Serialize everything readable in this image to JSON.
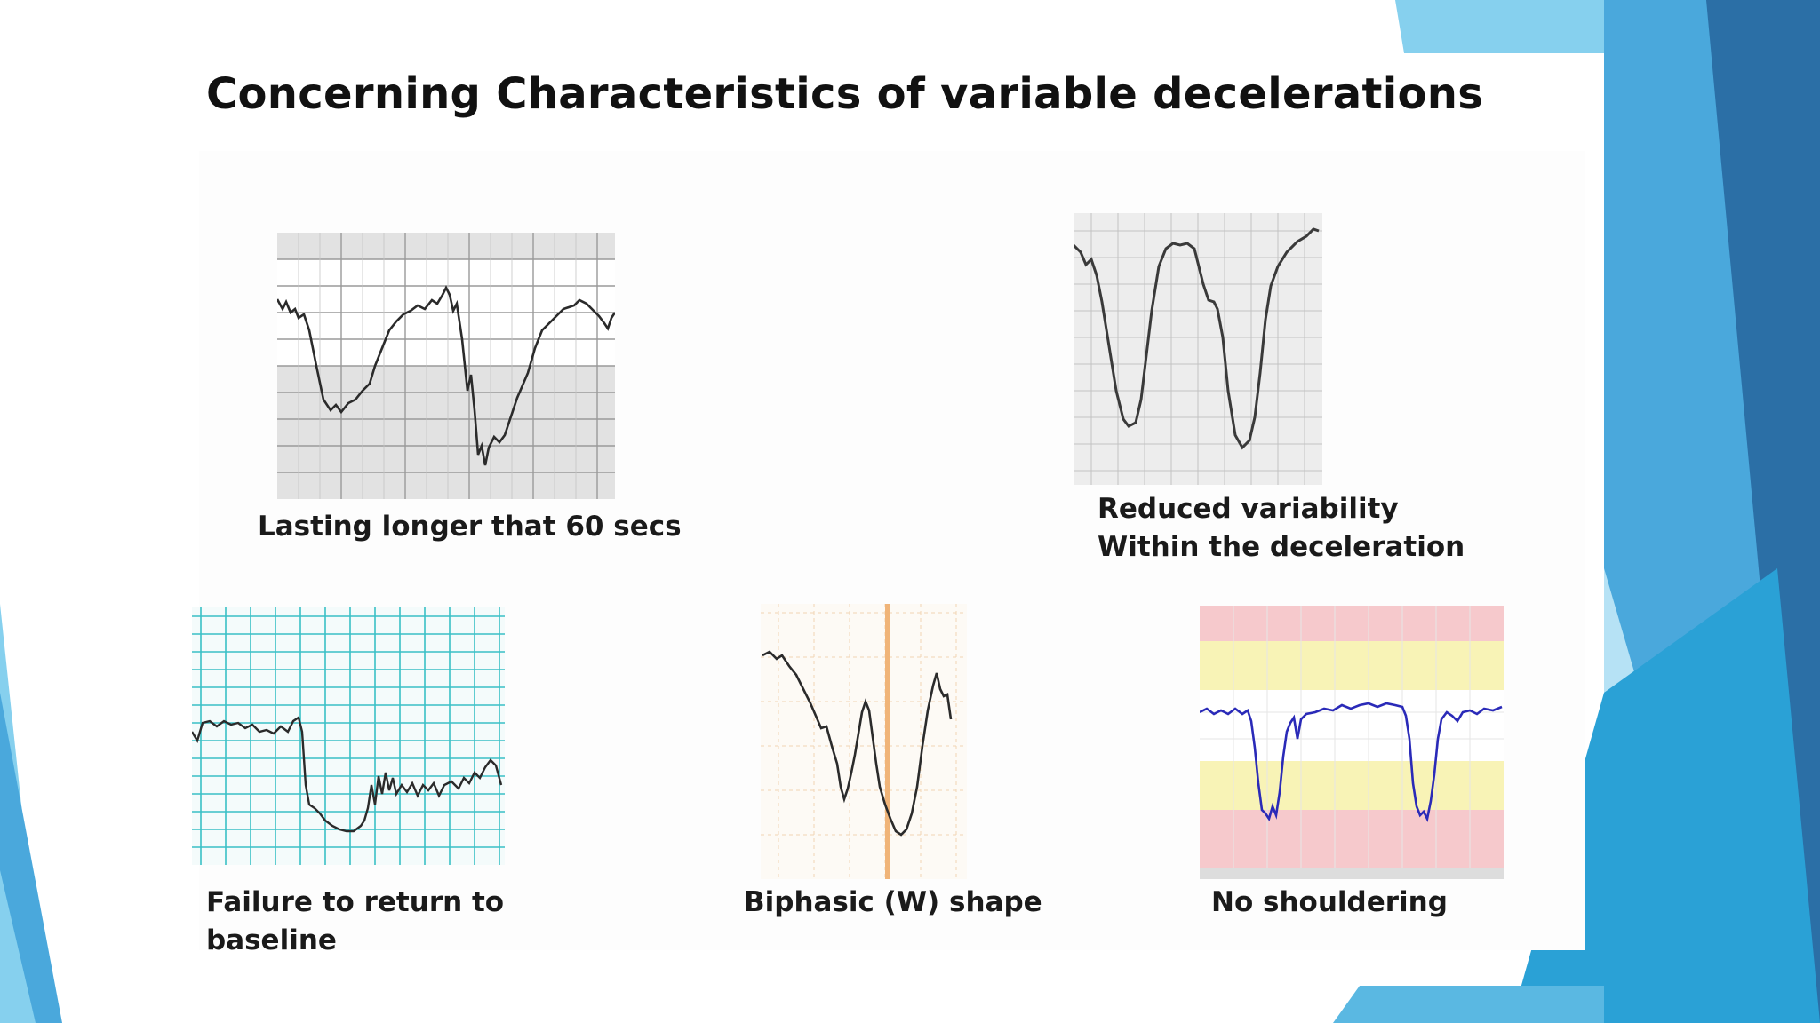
{
  "slide": {
    "title": "Concerning Characteristics of variable decelerations"
  },
  "figures": [
    {
      "caption": "Lasting longer that 60 secs"
    },
    {
      "caption_line1": "Reduced  variability",
      "caption_line2": "Within  the deceleration"
    },
    {
      "caption_line1": "Failure to  return  to",
      "caption_line2": "baseline"
    },
    {
      "caption": "Biphasic (W) shape"
    },
    {
      "caption": "No shouldering"
    }
  ],
  "colors": {
    "accent_dark": "#2b6fa6",
    "accent_mid": "#3aa6d8",
    "accent_light": "#86d0ee",
    "trace_dark": "#333333",
    "trace_blue": "#2a2ab8",
    "grid_teal": "#39c0c6",
    "band_pink": "#f6c9cc",
    "band_yellow": "#f8f3b6"
  }
}
